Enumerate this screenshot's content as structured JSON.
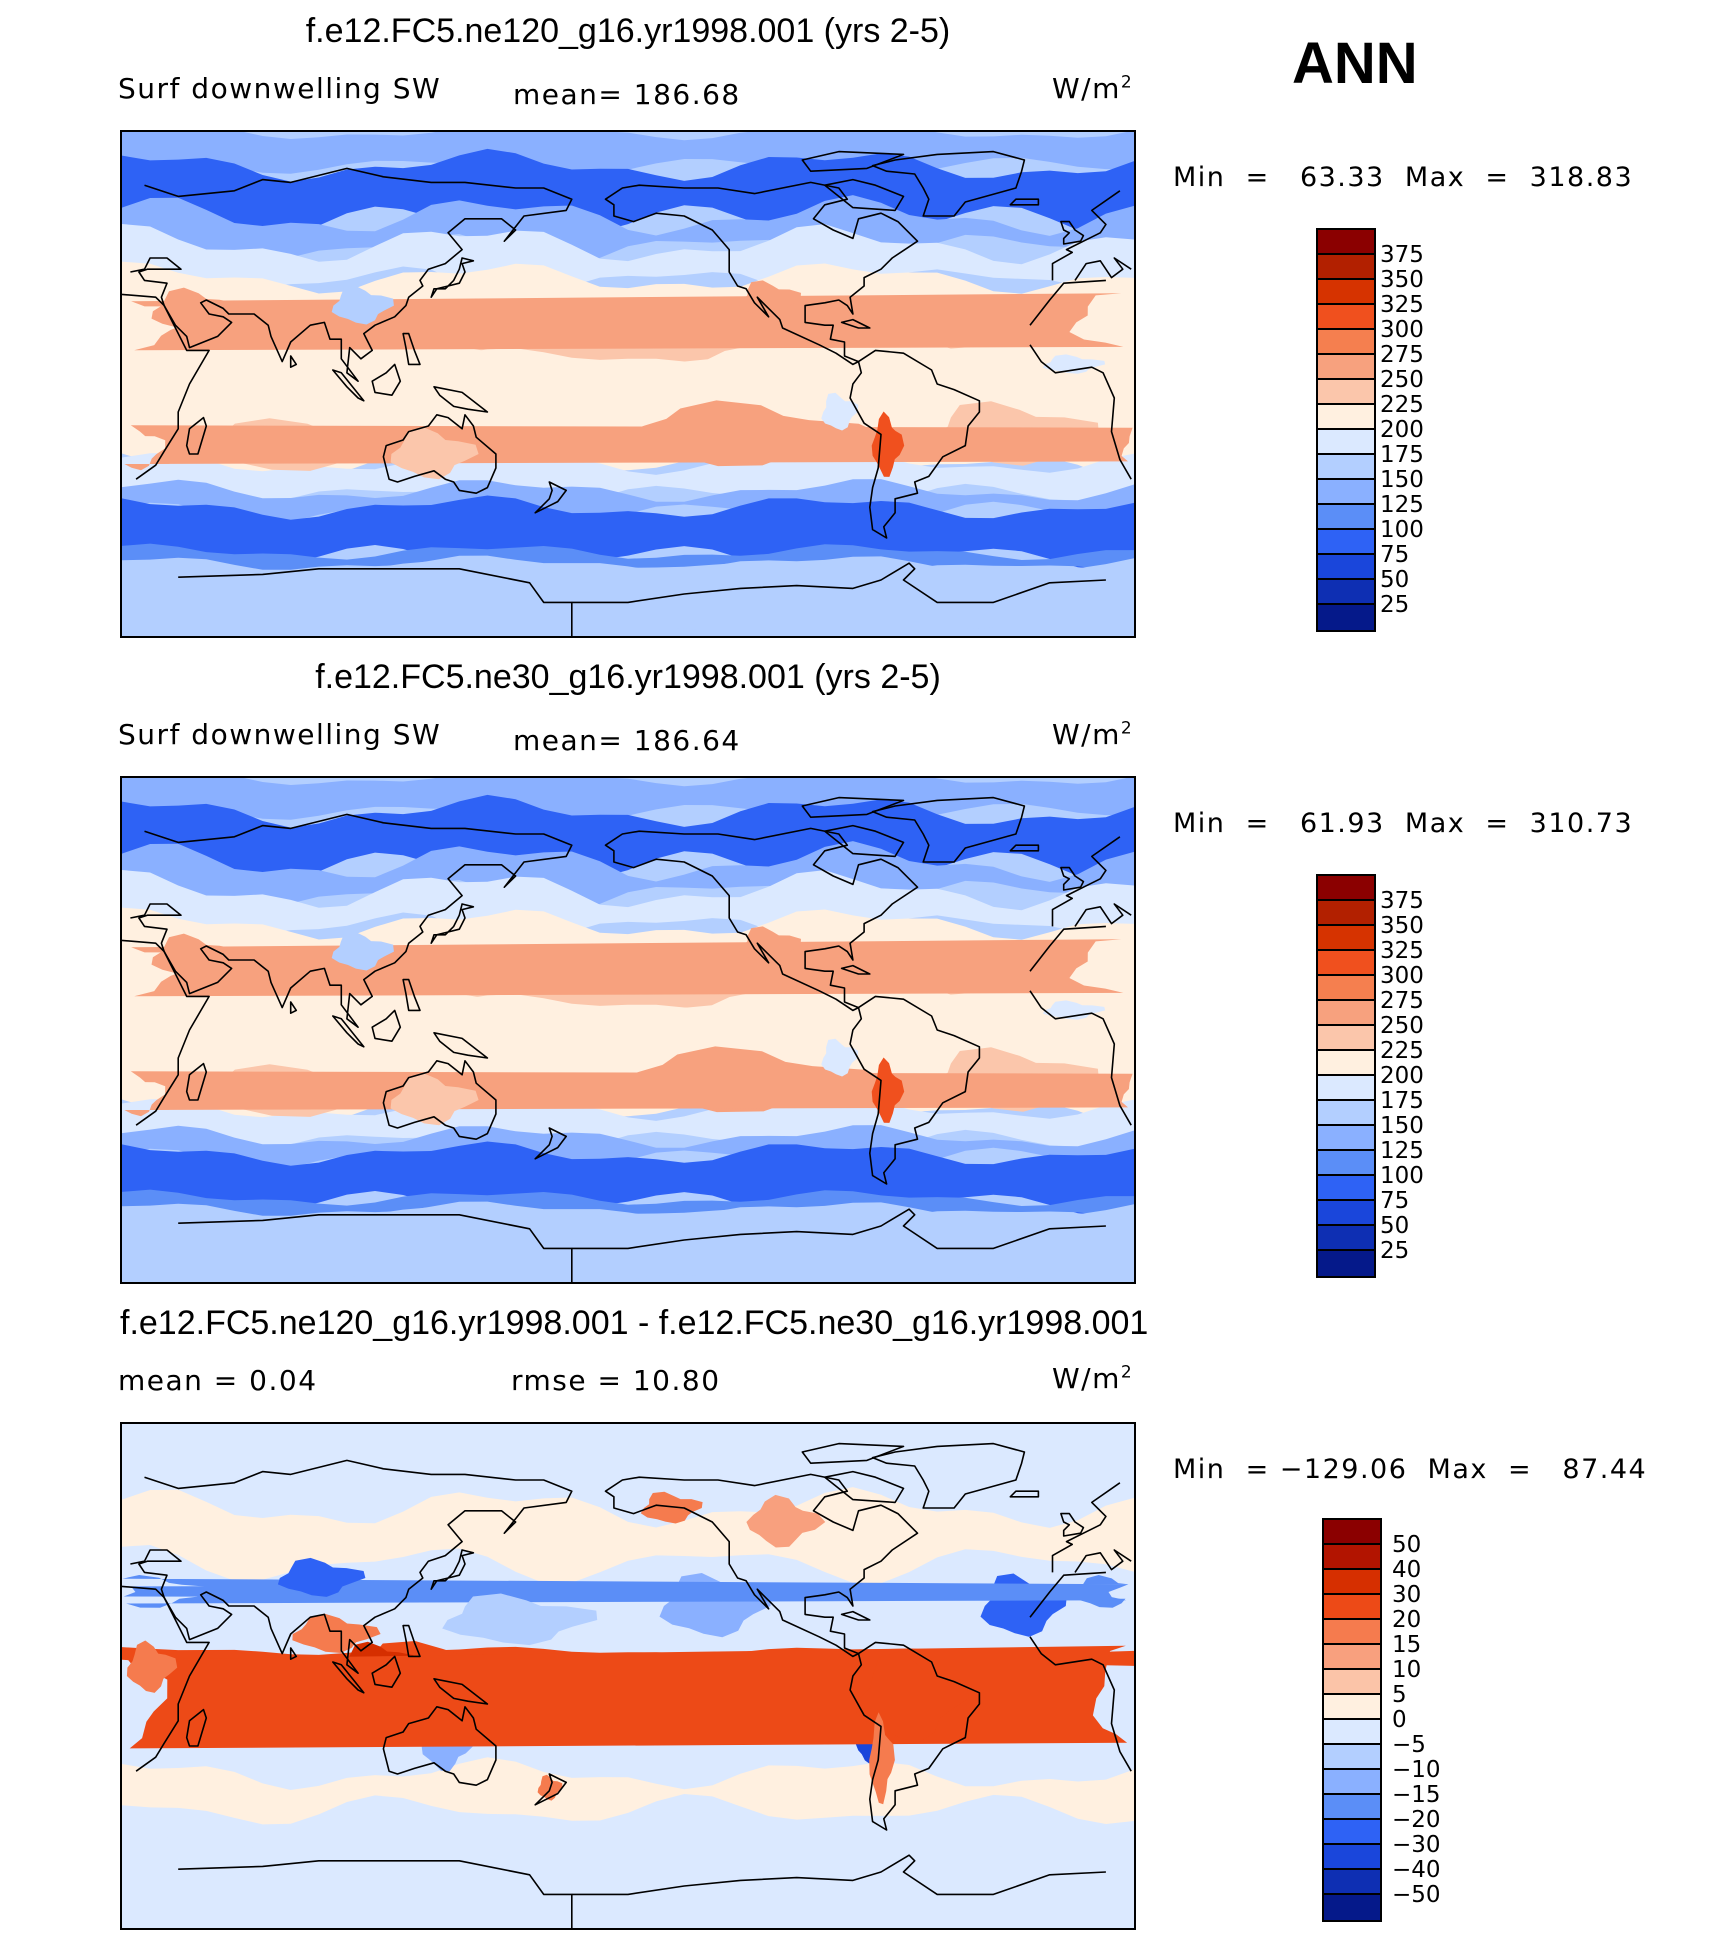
{
  "season": "ANN",
  "panels": [
    {
      "title": "f.e12.FC5.ne120_g16.yr1998.001 (yrs 2-5)",
      "left_label": "Surf downwelling SW",
      "mid_label": "mean=  186.68",
      "units": "W/m",
      "units_sup": "2",
      "minmax": "Min  =   63.33  Max  =  318.83",
      "colorbar": {
        "labels": [
          "375",
          "350",
          "325",
          "300",
          "275",
          "250",
          "225",
          "200",
          "175",
          "150",
          "125",
          "100",
          "75",
          "50",
          "25"
        ],
        "colors": [
          "#8b0000",
          "#b22000",
          "#d63300",
          "#f0501e",
          "#f57f4f",
          "#f7a17e",
          "#fbc6ab",
          "#fff0e0",
          "#dbe9ff",
          "#b3cfff",
          "#8ab0ff",
          "#5b8ef7",
          "#2e62f5",
          "#1a46db",
          "#0e2fb3",
          "#05198a"
        ]
      },
      "map": {
        "kind": "sw",
        "variant": "hi"
      }
    },
    {
      "title": "f.e12.FC5.ne30_g16.yr1998.001 (yrs 2-5)",
      "left_label": "Surf downwelling SW",
      "mid_label": "mean=  186.64",
      "units": "W/m",
      "units_sup": "2",
      "minmax": "Min  =   61.93  Max  =  310.73",
      "colorbar": {
        "labels": [
          "375",
          "350",
          "325",
          "300",
          "275",
          "250",
          "225",
          "200",
          "175",
          "150",
          "125",
          "100",
          "75",
          "50",
          "25"
        ],
        "colors": [
          "#8b0000",
          "#b22000",
          "#d63300",
          "#f0501e",
          "#f57f4f",
          "#f7a17e",
          "#fbc6ab",
          "#fff0e0",
          "#dbe9ff",
          "#b3cfff",
          "#8ab0ff",
          "#5b8ef7",
          "#2e62f5",
          "#1a46db",
          "#0e2fb3",
          "#05198a"
        ]
      },
      "map": {
        "kind": "sw",
        "variant": "lo"
      }
    },
    {
      "title": "f.e12.FC5.ne120_g16.yr1998.001 - f.e12.FC5.ne30_g16.yr1998.001",
      "left_label": "mean  =     0.04",
      "mid_label": "rmse  =    10.80",
      "units": "W/m",
      "units_sup": "2",
      "minmax": "Min  = −129.06  Max  =   87.44",
      "colorbar": {
        "labels": [
          "50",
          "40",
          "30",
          "20",
          "15",
          "10",
          "5",
          "0",
          "−5",
          "−10",
          "−15",
          "−20",
          "−30",
          "−40",
          "−50"
        ],
        "colors": [
          "#8b0000",
          "#b21400",
          "#d62f00",
          "#ed4a17",
          "#f57b4e",
          "#f8a07e",
          "#fbc4a8",
          "#fff0e0",
          "#dbe9ff",
          "#b3cfff",
          "#8ab0ff",
          "#5b8ef7",
          "#2e62f5",
          "#1a46db",
          "#0e2fb3",
          "#05198a"
        ]
      },
      "map": {
        "kind": "diff"
      }
    }
  ]
}
